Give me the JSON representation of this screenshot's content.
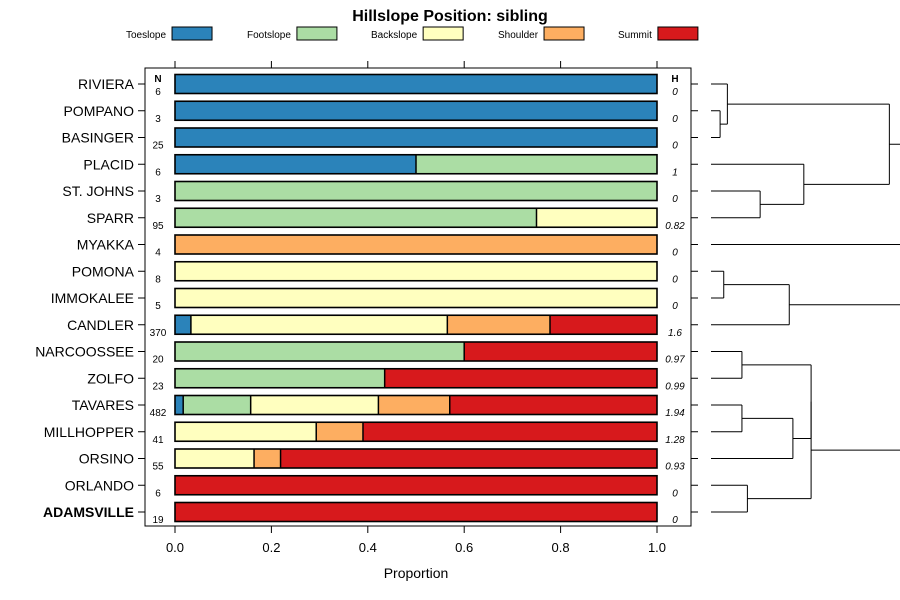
{
  "chart_data": {
    "type": "stacked-bar-horizontal",
    "title": "Hillslope Position: sibling",
    "xlabel": "Proportion",
    "xlim": [
      0,
      1
    ],
    "xticks": [
      "0.0",
      "0.2",
      "0.4",
      "0.6",
      "0.8",
      "1.0"
    ],
    "n_header": "N",
    "h_header": "H",
    "categories": [
      {
        "name": "Toeslope",
        "color": "#2b83ba"
      },
      {
        "name": "Footslope",
        "color": "#abdda4"
      },
      {
        "name": "Backslope",
        "color": "#ffffbf"
      },
      {
        "name": "Shoulder",
        "color": "#fdae61"
      },
      {
        "name": "Summit",
        "color": "#d7191c"
      }
    ],
    "rows": [
      {
        "label": "RIVIERA",
        "n": "6",
        "h": "0",
        "bold": false,
        "values": [
          1,
          0,
          0,
          0,
          0
        ]
      },
      {
        "label": "POMPANO",
        "n": "3",
        "h": "0",
        "bold": false,
        "values": [
          1,
          0,
          0,
          0,
          0
        ]
      },
      {
        "label": "BASINGER",
        "n": "25",
        "h": "0",
        "bold": false,
        "values": [
          1,
          0,
          0,
          0,
          0
        ]
      },
      {
        "label": "PLACID",
        "n": "6",
        "h": "1",
        "bold": false,
        "values": [
          0.5,
          0.5,
          0,
          0,
          0
        ]
      },
      {
        "label": "ST. JOHNS",
        "n": "3",
        "h": "0",
        "bold": false,
        "values": [
          0,
          1,
          0,
          0,
          0
        ]
      },
      {
        "label": "SPARR",
        "n": "95",
        "h": "0.82",
        "bold": false,
        "values": [
          0,
          0.75,
          0.25,
          0,
          0
        ]
      },
      {
        "label": "MYAKKA",
        "n": "4",
        "h": "0",
        "bold": false,
        "values": [
          0,
          0,
          0,
          1,
          0
        ]
      },
      {
        "label": "POMONA",
        "n": "8",
        "h": "0",
        "bold": false,
        "values": [
          0,
          0,
          1,
          0,
          0
        ]
      },
      {
        "label": "IMMOKALEE",
        "n": "5",
        "h": "0",
        "bold": false,
        "values": [
          0,
          0,
          1,
          0,
          0
        ]
      },
      {
        "label": "CANDLER",
        "n": "370",
        "h": "1.6",
        "bold": false,
        "values": [
          0.033,
          0,
          0.532,
          0.213,
          0.222
        ]
      },
      {
        "label": "NARCOOSSEE",
        "n": "20",
        "h": "0.97",
        "bold": false,
        "values": [
          0,
          0.6,
          0,
          0,
          0.4
        ]
      },
      {
        "label": "ZOLFO",
        "n": "23",
        "h": "0.99",
        "bold": false,
        "values": [
          0,
          0.435,
          0,
          0,
          0.565
        ]
      },
      {
        "label": "TAVARES",
        "n": "482",
        "h": "1.94",
        "bold": false,
        "values": [
          0.017,
          0.14,
          0.265,
          0.148,
          0.43
        ]
      },
      {
        "label": "MILLHOPPER",
        "n": "41",
        "h": "1.28",
        "bold": false,
        "values": [
          0,
          0,
          0.293,
          0.097,
          0.61
        ]
      },
      {
        "label": "ORSINO",
        "n": "55",
        "h": "0.93",
        "bold": false,
        "values": [
          0,
          0,
          0.164,
          0.055,
          0.781
        ]
      },
      {
        "label": "ORLANDO",
        "n": "6",
        "h": "0",
        "bold": false,
        "values": [
          0,
          0,
          0,
          0,
          1
        ]
      },
      {
        "label": "ADAMSVILLE",
        "n": "19",
        "h": "0",
        "bold": true,
        "values": [
          0,
          0,
          0,
          0,
          1
        ]
      }
    ],
    "dendrogram": {
      "note": "merge heights in data units (0 = leaves); leaves indexed by row order",
      "max_height": 1,
      "merges": [
        {
          "id": "m1",
          "a": 1,
          "b": 2,
          "height": 0.05
        },
        {
          "id": "m2",
          "a": 0,
          "b": "m1",
          "height": 0.09
        },
        {
          "id": "m3",
          "a": 4,
          "b": 5,
          "height": 0.27
        },
        {
          "id": "m4",
          "a": 3,
          "b": "m3",
          "height": 0.51
        },
        {
          "id": "m5",
          "a": "m2",
          "b": "m4",
          "height": 0.98
        },
        {
          "id": "m6",
          "a": 7,
          "b": 8,
          "height": 0.07
        },
        {
          "id": "m7",
          "a": "m6",
          "b": 9,
          "height": 0.43
        },
        {
          "id": "m8",
          "a": 10,
          "b": 11,
          "height": 0.17
        },
        {
          "id": "m9",
          "a": 12,
          "b": 13,
          "height": 0.17
        },
        {
          "id": "m10",
          "a": "m9",
          "b": 14,
          "height": 0.45
        },
        {
          "id": "m11",
          "a": "m8",
          "b": "m10",
          "height": 0.55
        },
        {
          "id": "m12",
          "a": 15,
          "b": 16,
          "height": 0.2
        },
        {
          "id": "m13",
          "a": "m11",
          "b": "m12",
          "height": 0.55
        },
        {
          "id": "m14",
          "a": "m7",
          "b": "m13",
          "height": 1.1
        },
        {
          "id": "m15",
          "a": 6,
          "b": "m14",
          "height": 1.2
        },
        {
          "id": "m16",
          "a": "m5",
          "b": "m15",
          "height": 1.2
        }
      ]
    }
  }
}
